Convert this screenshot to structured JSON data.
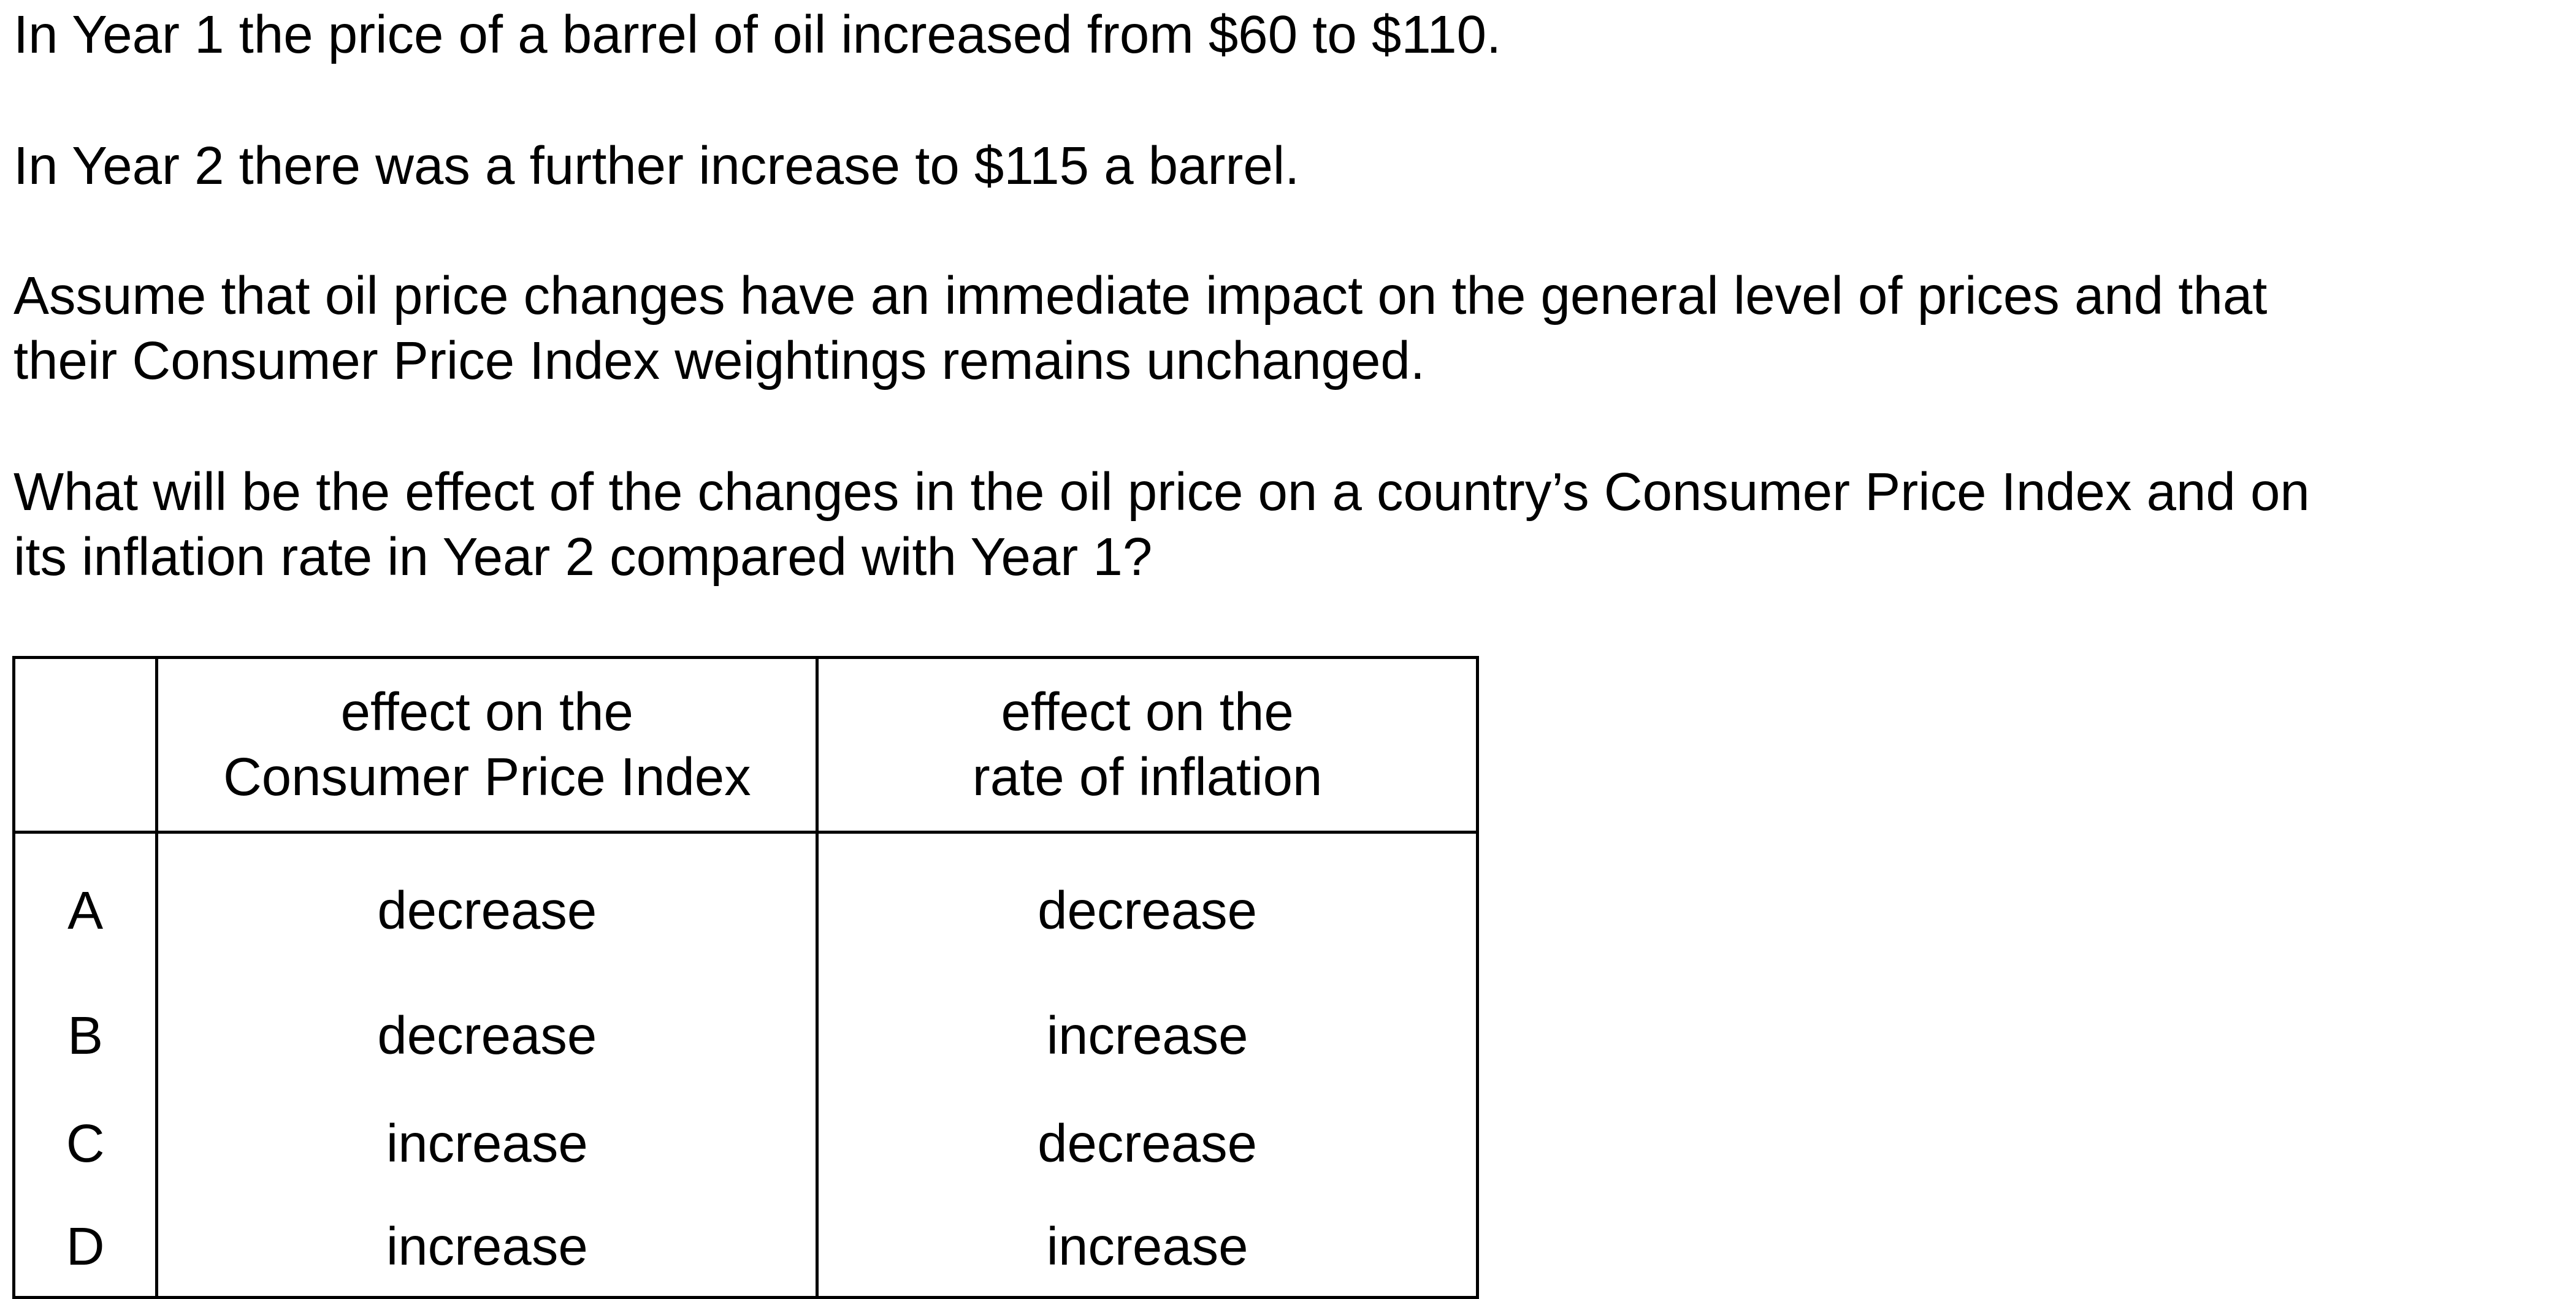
{
  "question": {
    "paragraph_1": "In Year 1 the price of a barrel of oil increased from $60 to $110.",
    "paragraph_2": "In Year 2 there was a further increase to $115 a barrel.",
    "paragraph_3_line_1": "Assume that oil price changes have an immediate impact on the general level of prices and that",
    "paragraph_3_line_2": "their Consumer Price Index weightings remains unchanged.",
    "paragraph_4_line_1": "What will be the effect of the changes in the oil price on a country’s Consumer Price Index and on",
    "paragraph_4_line_2": "its inflation rate in Year 2 compared with Year 1?"
  },
  "table": {
    "header": {
      "cpi_line_1": "effect on the",
      "cpi_line_2": "Consumer Price Index",
      "inflation_line_1": "effect on the",
      "inflation_line_2": "rate of inflation"
    },
    "rows": [
      {
        "letter": "A",
        "cpi": "decrease",
        "inflation": "decrease"
      },
      {
        "letter": "B",
        "cpi": "decrease",
        "inflation": "increase"
      },
      {
        "letter": "C",
        "cpi": "increase",
        "inflation": "decrease"
      },
      {
        "letter": "D",
        "cpi": "increase",
        "inflation": "increase"
      }
    ]
  }
}
